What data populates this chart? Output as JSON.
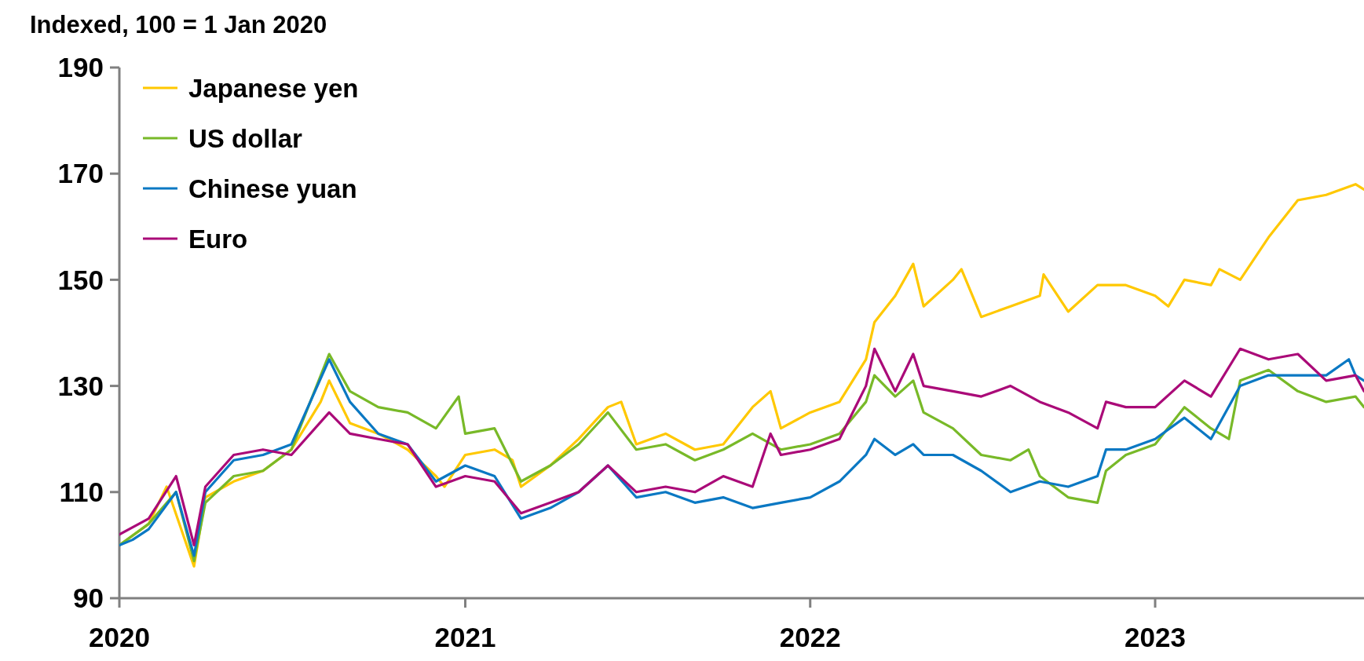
{
  "chart_data": {
    "type": "line",
    "ylabel": "Indexed, 100 = 1 Jan 2020",
    "xlim": [
      "2020-01-01",
      "2023-08-10"
    ],
    "xticks": [
      "2020",
      "2021",
      "2022",
      "2023"
    ],
    "ylim": [
      90,
      190
    ],
    "yticks": [
      90,
      110,
      130,
      150,
      170,
      190
    ],
    "legend": "top left",
    "grid": false,
    "line_style": "solid",
    "marker": "none",
    "series": [
      {
        "name": "Japanese yen",
        "color": "#ffc800",
        "x": [
          "2020-01-01",
          "2020-02-01",
          "2020-02-20",
          "2020-03-20",
          "2020-04-01",
          "2020-05-01",
          "2020-06-01",
          "2020-07-01",
          "2020-08-01",
          "2020-08-10",
          "2020-09-01",
          "2020-10-01",
          "2020-11-01",
          "2020-12-01",
          "2020-12-10",
          "2021-01-01",
          "2021-02-01",
          "2021-02-20",
          "2021-03-01",
          "2021-04-01",
          "2021-05-01",
          "2021-06-01",
          "2021-06-15",
          "2021-07-01",
          "2021-08-01",
          "2021-09-01",
          "2021-10-01",
          "2021-11-01",
          "2021-11-20",
          "2021-12-01",
          "2022-01-01",
          "2022-02-01",
          "2022-03-01",
          "2022-03-10",
          "2022-04-01",
          "2022-04-20",
          "2022-05-01",
          "2022-06-01",
          "2022-06-10",
          "2022-07-01",
          "2022-08-01",
          "2022-09-01",
          "2022-09-05",
          "2022-10-01",
          "2022-11-01",
          "2022-12-01",
          "2023-01-01",
          "2023-01-15",
          "2023-02-01",
          "2023-03-01",
          "2023-03-10",
          "2023-04-01",
          "2023-05-01",
          "2023-06-01",
          "2023-07-01",
          "2023-08-01",
          "2023-08-10"
        ],
        "values": [
          100,
          104,
          111,
          96,
          109,
          112,
          114,
          118,
          127,
          131,
          123,
          121,
          118,
          113,
          111,
          117,
          118,
          116,
          111,
          115,
          120,
          126,
          127,
          119,
          121,
          118,
          119,
          126,
          129,
          122,
          125,
          127,
          135,
          142,
          147,
          153,
          145,
          150,
          152,
          143,
          145,
          147,
          151,
          144,
          149,
          149,
          147,
          145,
          150,
          149,
          152,
          150,
          158,
          165,
          166,
          168,
          167
        ]
      },
      {
        "name": "US dollar",
        "color": "#78b928",
        "x": [
          "2020-01-01",
          "2020-02-01",
          "2020-03-01",
          "2020-03-20",
          "2020-04-01",
          "2020-05-01",
          "2020-06-01",
          "2020-07-01",
          "2020-08-10",
          "2020-09-01",
          "2020-10-01",
          "2020-11-01",
          "2020-12-01",
          "2020-12-25",
          "2021-01-01",
          "2021-02-01",
          "2021-03-01",
          "2021-04-01",
          "2021-05-01",
          "2021-06-01",
          "2021-07-01",
          "2021-08-01",
          "2021-09-01",
          "2021-10-01",
          "2021-11-01",
          "2021-12-01",
          "2022-01-01",
          "2022-02-01",
          "2022-03-01",
          "2022-03-10",
          "2022-04-01",
          "2022-04-20",
          "2022-05-01",
          "2022-06-01",
          "2022-07-01",
          "2022-08-01",
          "2022-08-20",
          "2022-09-01",
          "2022-10-01",
          "2022-11-01",
          "2022-11-10",
          "2022-12-01",
          "2023-01-01",
          "2023-02-01",
          "2023-03-01",
          "2023-03-20",
          "2023-04-01",
          "2023-05-01",
          "2023-06-01",
          "2023-07-01",
          "2023-08-01",
          "2023-08-10"
        ],
        "values": [
          100,
          104,
          110,
          97,
          108,
          113,
          114,
          118,
          136,
          129,
          126,
          125,
          122,
          128,
          121,
          122,
          112,
          115,
          119,
          125,
          118,
          119,
          116,
          118,
          121,
          118,
          119,
          121,
          127,
          132,
          128,
          131,
          125,
          122,
          117,
          116,
          118,
          113,
          109,
          108,
          114,
          117,
          119,
          126,
          122,
          120,
          131,
          133,
          129,
          127,
          128,
          126
        ]
      },
      {
        "name": "Chinese yuan",
        "color": "#0a78c3",
        "x": [
          "2020-01-01",
          "2020-01-15",
          "2020-02-01",
          "2020-03-01",
          "2020-03-20",
          "2020-04-01",
          "2020-05-01",
          "2020-06-01",
          "2020-07-01",
          "2020-08-10",
          "2020-09-01",
          "2020-10-01",
          "2020-11-01",
          "2020-12-01",
          "2021-01-01",
          "2021-02-01",
          "2021-03-01",
          "2021-04-01",
          "2021-05-01",
          "2021-06-01",
          "2021-07-01",
          "2021-08-01",
          "2021-09-01",
          "2021-10-01",
          "2021-11-01",
          "2021-12-01",
          "2022-01-01",
          "2022-02-01",
          "2022-03-01",
          "2022-03-10",
          "2022-04-01",
          "2022-04-20",
          "2022-05-01",
          "2022-06-01",
          "2022-07-01",
          "2022-08-01",
          "2022-09-01",
          "2022-10-01",
          "2022-11-01",
          "2022-11-10",
          "2022-12-01",
          "2023-01-01",
          "2023-02-01",
          "2023-03-01",
          "2023-04-01",
          "2023-05-01",
          "2023-06-01",
          "2023-07-01",
          "2023-07-25",
          "2023-08-01",
          "2023-08-10"
        ],
        "values": [
          100,
          101,
          103,
          110,
          98,
          110,
          116,
          117,
          119,
          135,
          127,
          121,
          119,
          112,
          115,
          113,
          105,
          107,
          110,
          115,
          109,
          110,
          108,
          109,
          107,
          108,
          109,
          112,
          117,
          120,
          117,
          119,
          117,
          117,
          114,
          110,
          112,
          111,
          113,
          118,
          118,
          120,
          124,
          120,
          130,
          132,
          132,
          132,
          135,
          132,
          131
        ]
      },
      {
        "name": "Euro",
        "color": "#aa0a78",
        "x": [
          "2020-01-01",
          "2020-02-01",
          "2020-03-01",
          "2020-03-20",
          "2020-04-01",
          "2020-05-01",
          "2020-06-01",
          "2020-07-01",
          "2020-08-10",
          "2020-09-01",
          "2020-10-01",
          "2020-11-01",
          "2020-12-01",
          "2021-01-01",
          "2021-02-01",
          "2021-03-01",
          "2021-04-01",
          "2021-05-01",
          "2021-06-01",
          "2021-07-01",
          "2021-08-01",
          "2021-09-01",
          "2021-10-01",
          "2021-11-01",
          "2021-11-20",
          "2021-12-01",
          "2022-01-01",
          "2022-02-01",
          "2022-03-01",
          "2022-03-10",
          "2022-04-01",
          "2022-04-20",
          "2022-05-01",
          "2022-06-01",
          "2022-07-01",
          "2022-08-01",
          "2022-09-01",
          "2022-10-01",
          "2022-11-01",
          "2022-11-10",
          "2022-12-01",
          "2023-01-01",
          "2023-02-01",
          "2023-03-01",
          "2023-04-01",
          "2023-05-01",
          "2023-06-01",
          "2023-07-01",
          "2023-08-01",
          "2023-08-10"
        ],
        "values": [
          102,
          105,
          113,
          100,
          111,
          117,
          118,
          117,
          125,
          121,
          120,
          119,
          111,
          113,
          112,
          106,
          108,
          110,
          115,
          110,
          111,
          110,
          113,
          111,
          121,
          117,
          118,
          120,
          130,
          137,
          129,
          136,
          130,
          129,
          128,
          130,
          127,
          125,
          122,
          127,
          126,
          126,
          131,
          128,
          137,
          135,
          136,
          131,
          132,
          129
        ]
      }
    ]
  }
}
